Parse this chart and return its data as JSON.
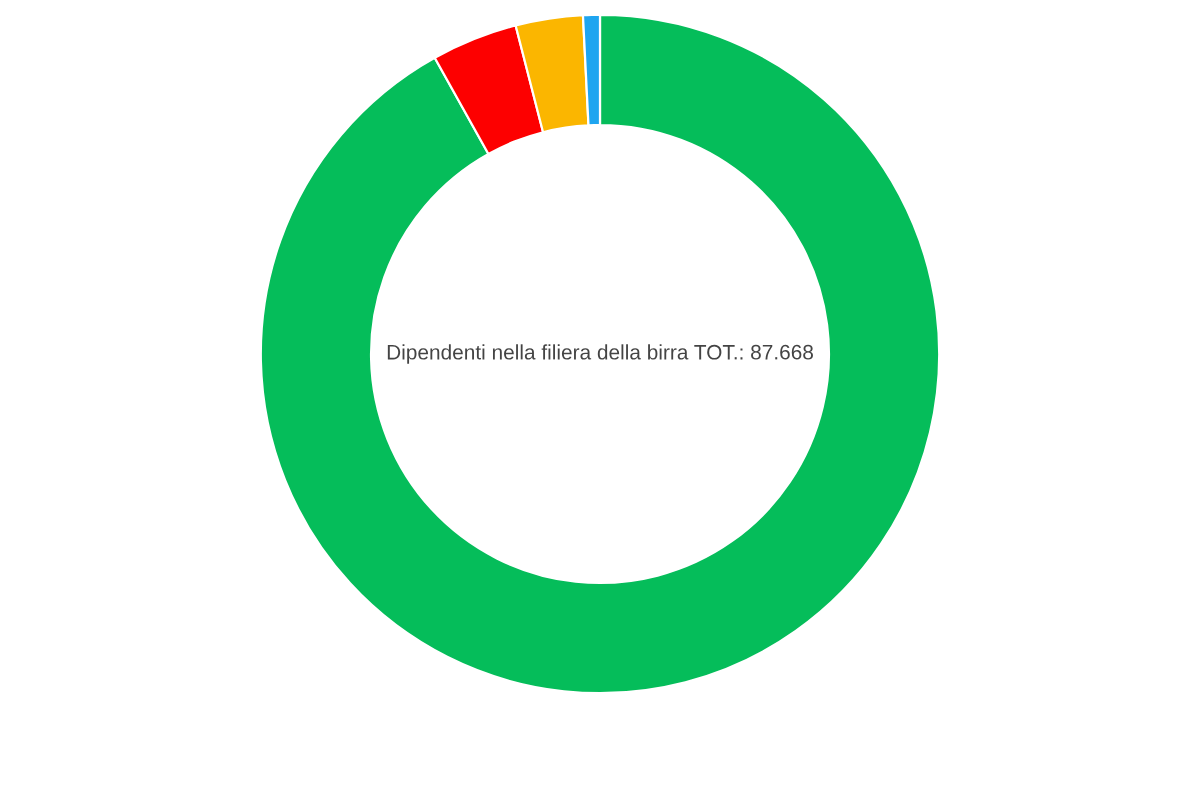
{
  "chart_data": {
    "type": "donut",
    "categories": [
      null,
      null,
      null,
      null
    ],
    "values": [
      91.9,
      4.1,
      3.2,
      0.8
    ],
    "colors": [
      "#05bd5a",
      "#fd0000",
      "#fbb600",
      "#1ea5f0"
    ],
    "annotations": [
      "Dipendenti nella filiera della birra TOT.: 87.668"
    ]
  }
}
